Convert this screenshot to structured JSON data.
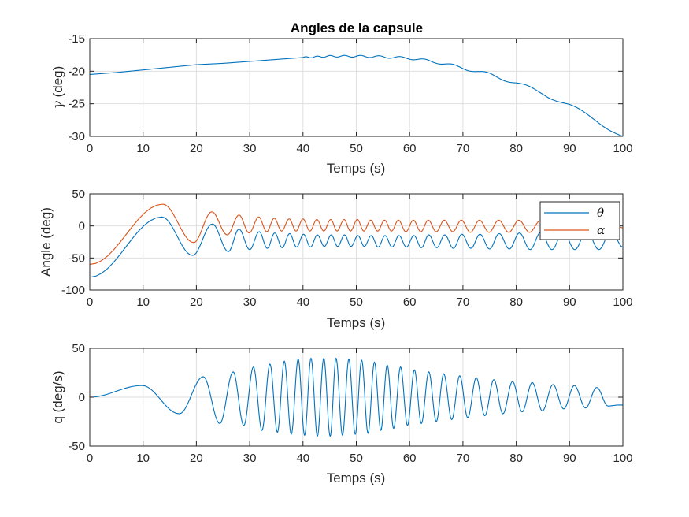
{
  "figure": {
    "title": "Angles de la capsule"
  },
  "colors": {
    "theta": "#0072BD",
    "alpha": "#D95319",
    "axis": "#262626",
    "grid": "#dfdfdf"
  },
  "chart_data": [
    {
      "type": "line",
      "title": "Angles de la capsule",
      "xlabel": "Temps (s)",
      "ylabel_symbol": "γ",
      "ylabel": " (deg)",
      "xlim": [
        0,
        100
      ],
      "ylim": [
        -30,
        -15
      ],
      "xticks": [
        "0",
        "10",
        "20",
        "30",
        "40",
        "50",
        "60",
        "70",
        "80",
        "90",
        "100"
      ],
      "yticks": [
        "-30",
        "-25",
        "-20",
        "-15"
      ],
      "grid": true,
      "series": [
        {
          "color": "#0072BD",
          "x": [
            0,
            5,
            10,
            15,
            20,
            25,
            30,
            35,
            40,
            45,
            50,
            55,
            60,
            65,
            70,
            75,
            80,
            85,
            90,
            95,
            100
          ],
          "y": [
            -20.5,
            -20.2,
            -19.8,
            -19.4,
            -19.0,
            -18.8,
            -18.5,
            -18.2,
            -17.9,
            -17.7,
            -17.7,
            -17.8,
            -18.0,
            -18.6,
            -19.5,
            -20.5,
            -21.8,
            -23.4,
            -25.3,
            -27.5,
            -30.0
          ],
          "oscillation": {
            "start": 40,
            "end": 100,
            "amp_start": 0.1,
            "amp_end": 0.35,
            "period_start": 2.0,
            "period_end": 5.0
          }
        }
      ]
    },
    {
      "type": "line",
      "xlabel": "Temps (s)",
      "ylabel": "Angle (deg)",
      "xlim": [
        0,
        100
      ],
      "ylim": [
        -100,
        50
      ],
      "xticks": [
        "0",
        "10",
        "20",
        "30",
        "40",
        "50",
        "60",
        "70",
        "80",
        "90",
        "100"
      ],
      "yticks": [
        "-100",
        "-50",
        "0",
        "50"
      ],
      "grid": true,
      "legend": {
        "placement": "top-right",
        "entries": [
          "θ",
          "α"
        ]
      },
      "series": [
        {
          "name": "θ",
          "color": "#0072BD",
          "peaks": [
            [
              0,
              -80
            ],
            [
              13.5,
              14
            ],
            [
              19.3,
              -46
            ],
            [
              23,
              3
            ],
            [
              26,
              -40
            ],
            [
              28,
              -5
            ],
            [
              30,
              -37
            ],
            [
              31.8,
              -9
            ],
            [
              33.3,
              -35
            ],
            [
              34.7,
              -11
            ],
            [
              36.1,
              -34
            ],
            [
              37.5,
              -12
            ],
            [
              38.8,
              -33
            ],
            [
              40.1,
              -13
            ],
            [
              41.4,
              -33
            ],
            [
              42.7,
              -14
            ],
            [
              44,
              -32
            ],
            [
              45.3,
              -14
            ],
            [
              46.5,
              -32
            ],
            [
              47.8,
              -14
            ],
            [
              49,
              -32
            ],
            [
              50.3,
              -15
            ],
            [
              51.5,
              -32
            ],
            [
              52.8,
              -15
            ],
            [
              54.1,
              -33
            ],
            [
              55.4,
              -15
            ],
            [
              56.7,
              -33
            ],
            [
              58,
              -15
            ],
            [
              59.4,
              -33
            ],
            [
              60.8,
              -15
            ],
            [
              62.2,
              -34
            ],
            [
              63.6,
              -14
            ],
            [
              65.1,
              -34
            ],
            [
              66.6,
              -14
            ],
            [
              68.2,
              -35
            ],
            [
              69.8,
              -13
            ],
            [
              71.5,
              -35
            ],
            [
              73.2,
              -13
            ],
            [
              75,
              -36
            ],
            [
              76.8,
              -12
            ],
            [
              78.7,
              -36
            ],
            [
              80.6,
              -11
            ],
            [
              82.6,
              -37
            ],
            [
              84.6,
              -10
            ],
            [
              86.7,
              -37
            ],
            [
              88.8,
              -9
            ],
            [
              91,
              -37
            ],
            [
              93.2,
              -8
            ],
            [
              95.5,
              -37
            ],
            [
              97.8,
              -8
            ],
            [
              100,
              -33
            ]
          ]
        },
        {
          "name": "α",
          "color": "#D95319",
          "peaks": [
            [
              0,
              -60
            ],
            [
              13.7,
              34
            ],
            [
              19.5,
              -26
            ],
            [
              22.9,
              22
            ],
            [
              25.8,
              -14
            ],
            [
              28,
              17
            ],
            [
              29.9,
              -11
            ],
            [
              31.7,
              14
            ],
            [
              33.2,
              -9
            ],
            [
              34.6,
              12
            ],
            [
              36,
              -8
            ],
            [
              37.4,
              11
            ],
            [
              38.7,
              -8
            ],
            [
              40,
              11
            ],
            [
              41.3,
              -8
            ],
            [
              42.6,
              10
            ],
            [
              43.9,
              -8
            ],
            [
              45.2,
              10
            ],
            [
              46.4,
              -8
            ],
            [
              47.7,
              10
            ],
            [
              48.9,
              -8
            ],
            [
              50.2,
              10
            ],
            [
              51.4,
              -8
            ],
            [
              52.7,
              9
            ],
            [
              54,
              -8
            ],
            [
              55.3,
              9
            ],
            [
              56.6,
              -8
            ],
            [
              57.9,
              9
            ],
            [
              59.3,
              -9
            ],
            [
              60.7,
              9
            ],
            [
              62.1,
              -9
            ],
            [
              63.5,
              9
            ],
            [
              65,
              -9
            ],
            [
              66.5,
              9
            ],
            [
              68.1,
              -9
            ],
            [
              69.7,
              9
            ],
            [
              71.4,
              -10
            ],
            [
              73.1,
              9
            ],
            [
              74.9,
              -10
            ],
            [
              76.7,
              9
            ],
            [
              78.6,
              -10
            ],
            [
              80.5,
              9
            ],
            [
              82.5,
              -10
            ],
            [
              84.5,
              8
            ],
            [
              86.6,
              -10
            ],
            [
              88.7,
              8
            ],
            [
              90.9,
              -10
            ],
            [
              93.1,
              8
            ],
            [
              95.4,
              -10
            ],
            [
              97.7,
              8
            ],
            [
              100,
              -3
            ]
          ]
        }
      ]
    },
    {
      "type": "line",
      "xlabel": "Temps (s)",
      "ylabel": "q (deg/s)",
      "xlim": [
        0,
        100
      ],
      "ylim": [
        -50,
        50
      ],
      "xticks": [
        "0",
        "10",
        "20",
        "30",
        "40",
        "50",
        "60",
        "70",
        "80",
        "90",
        "100"
      ],
      "yticks": [
        "-50",
        "0",
        "50"
      ],
      "grid": true,
      "series": [
        {
          "color": "#0072BD",
          "peaks": [
            [
              0,
              0
            ],
            [
              9.8,
              12
            ],
            [
              16.8,
              -17
            ],
            [
              21.3,
              21
            ],
            [
              24.4,
              -27
            ],
            [
              26.9,
              26
            ],
            [
              28.9,
              -29
            ],
            [
              30.7,
              31
            ],
            [
              32.3,
              -34
            ],
            [
              33.8,
              34
            ],
            [
              35.2,
              -36
            ],
            [
              36.5,
              37
            ],
            [
              37.8,
              -38
            ],
            [
              39.1,
              39
            ],
            [
              40.3,
              -39
            ],
            [
              41.5,
              40
            ],
            [
              42.7,
              -40
            ],
            [
              43.9,
              40
            ],
            [
              45.1,
              -40
            ],
            [
              46.2,
              40
            ],
            [
              47.4,
              -39
            ],
            [
              48.6,
              39
            ],
            [
              49.8,
              -38
            ],
            [
              51,
              38
            ],
            [
              52.2,
              -37
            ],
            [
              53.4,
              36
            ],
            [
              54.6,
              -34
            ],
            [
              55.8,
              33
            ],
            [
              57,
              -32
            ],
            [
              58.3,
              31
            ],
            [
              59.6,
              -29
            ],
            [
              60.9,
              28
            ],
            [
              62.2,
              -27
            ],
            [
              63.6,
              26
            ],
            [
              65,
              -25
            ],
            [
              66.4,
              24
            ],
            [
              67.9,
              -23
            ],
            [
              69.4,
              22
            ],
            [
              70.9,
              -21
            ],
            [
              72.5,
              20
            ],
            [
              74.1,
              -19
            ],
            [
              75.8,
              18
            ],
            [
              77.5,
              -17
            ],
            [
              79.3,
              16
            ],
            [
              81.1,
              -15
            ],
            [
              83,
              15
            ],
            [
              84.9,
              -14
            ],
            [
              86.9,
              13
            ],
            [
              88.9,
              -12
            ],
            [
              90.9,
              12
            ],
            [
              93,
              -11
            ],
            [
              95.1,
              10
            ],
            [
              97.2,
              -9
            ],
            [
              99.3,
              -8
            ],
            [
              100,
              -8
            ]
          ]
        }
      ]
    }
  ]
}
